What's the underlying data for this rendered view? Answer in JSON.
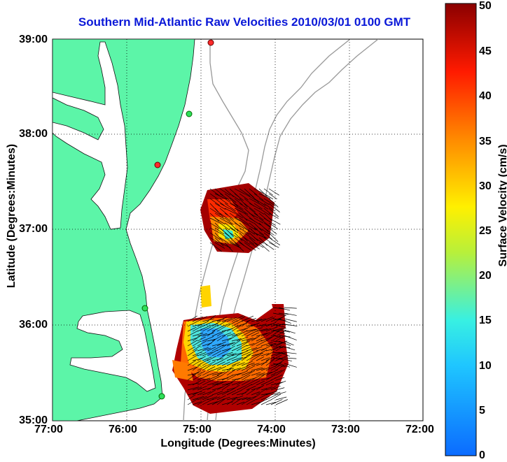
{
  "title": "Southern Mid-Atlantic Raw Velocities 2010/03/01 0100 GMT",
  "xlabel": "Longitude (Degrees:Minutes)",
  "ylabel": "Latitude (Degrees:Minutes)",
  "colorbar": {
    "label": "Surface Velocity (cm/s)",
    "ticks": [
      "0",
      "5",
      "10",
      "15",
      "20",
      "25",
      "30",
      "35",
      "40",
      "45",
      "50"
    ],
    "range": [
      0,
      50
    ]
  },
  "map": {
    "xticks": [
      "77:00",
      "76:00",
      "75:00",
      "74:00",
      "73:00",
      "72:00"
    ],
    "yticks": [
      "39:00",
      "38:00",
      "37:00",
      "36:00",
      "35:00"
    ],
    "lon_range": [
      -77,
      -72
    ],
    "lat_range": [
      35,
      39
    ],
    "grid": true,
    "land_color": "#5cf5a8",
    "stations": [
      {
        "status": "active",
        "color": "#2ee05a"
      },
      {
        "status": "inactive",
        "color": "#ff2a2a"
      }
    ]
  }
}
